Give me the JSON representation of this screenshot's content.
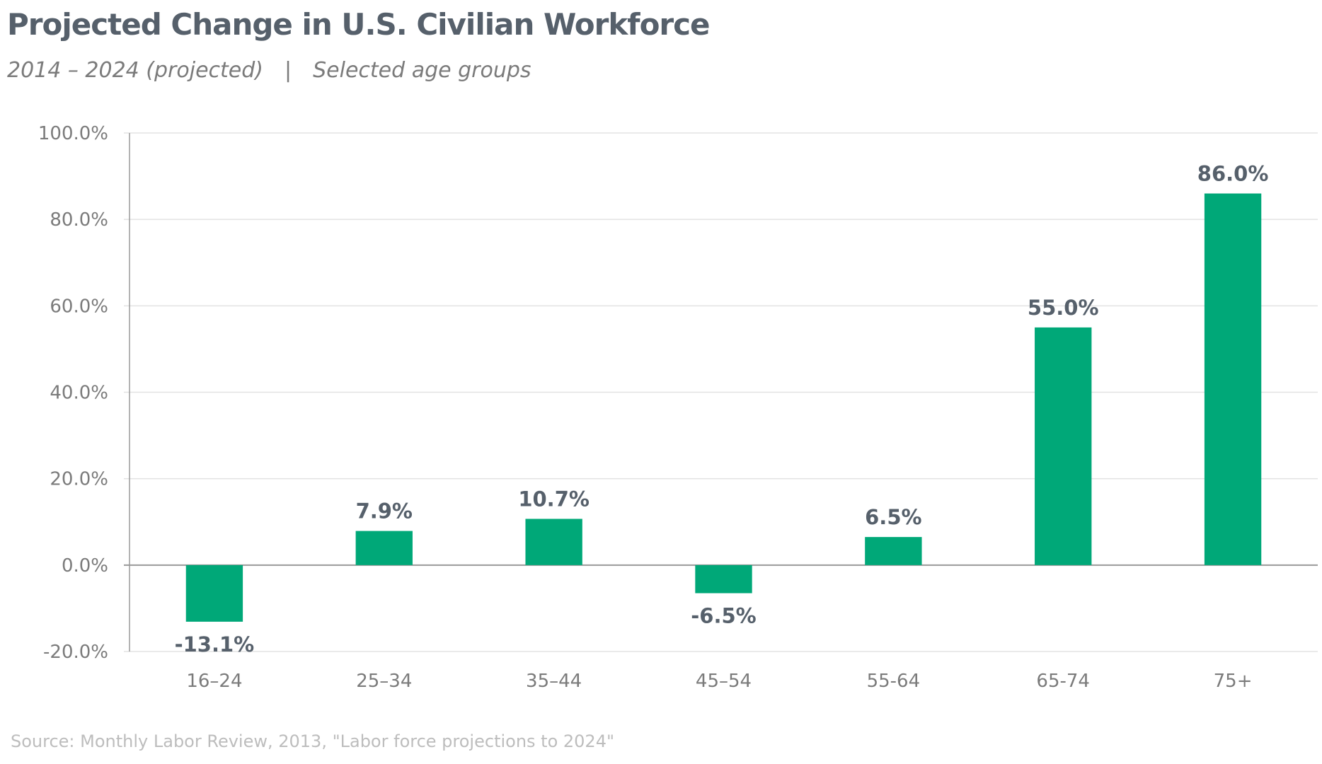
{
  "header": {
    "title": "Projected Change in U.S. Civilian Workforce",
    "subtitle_left": "2014 – 2024 (projected)",
    "subtitle_sep": "|",
    "subtitle_right": "Selected age groups"
  },
  "footer": {
    "source": "Source: Monthly Labor Review, 2013, \"Labor force projections to 2024\""
  },
  "colors": {
    "bar": "#00a878",
    "grid": "#e3e3e3",
    "axis": "#9a9a9a"
  },
  "chart_data": {
    "type": "bar",
    "categories": [
      "16–24",
      "25–34",
      "35–44",
      "45–54",
      "55-64",
      "65-74",
      "75+"
    ],
    "values": [
      -13.1,
      7.9,
      10.7,
      -6.5,
      6.5,
      55.0,
      86.0
    ],
    "value_labels": [
      "-13.1%",
      "7.9%",
      "10.7%",
      "-6.5%",
      "6.5%",
      "55.0%",
      "86.0%"
    ],
    "y_ticks": [
      -20,
      0,
      20,
      40,
      60,
      80,
      100
    ],
    "y_tick_labels": [
      "-20.0%",
      "0.0%",
      "20.0%",
      "40.0%",
      "60.0%",
      "80.0%",
      "100.0%"
    ],
    "ylim": [
      -20,
      100
    ],
    "grid": true,
    "legend": "none"
  }
}
